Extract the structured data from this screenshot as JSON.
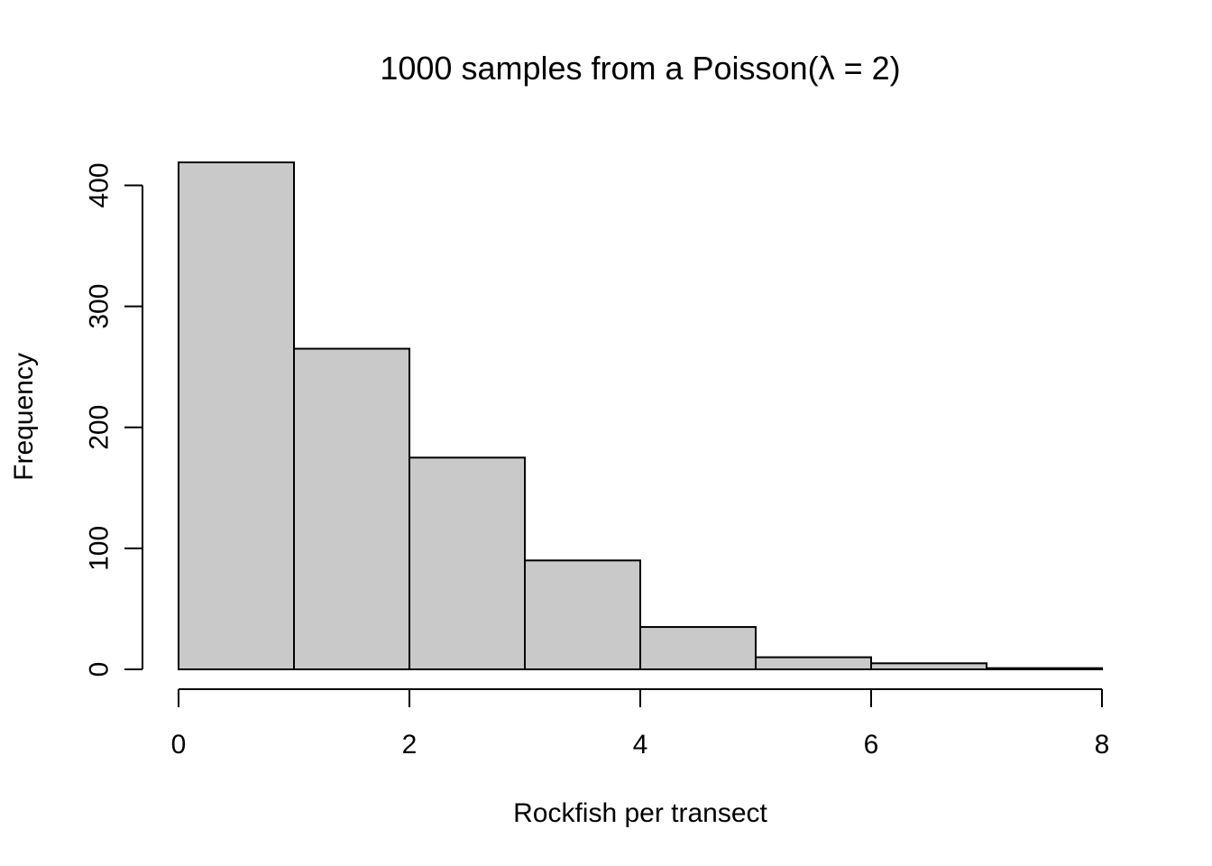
{
  "chart_data": {
    "type": "bar",
    "title": "1000 samples from a Poisson(λ = 2)",
    "xlabel": "Rockfish per transect",
    "ylabel": "Frequency",
    "bins": [
      {
        "start": 0,
        "end": 1,
        "count": 419
      },
      {
        "start": 1,
        "end": 2,
        "count": 265
      },
      {
        "start": 2,
        "end": 3,
        "count": 175
      },
      {
        "start": 3,
        "end": 4,
        "count": 90
      },
      {
        "start": 4,
        "end": 5,
        "count": 35
      },
      {
        "start": 5,
        "end": 6,
        "count": 10
      },
      {
        "start": 6,
        "end": 7,
        "count": 5
      },
      {
        "start": 7,
        "end": 8,
        "count": 1
      }
    ],
    "x_ticks": [
      0,
      2,
      4,
      6,
      8
    ],
    "y_ticks": [
      0,
      100,
      200,
      300,
      400
    ],
    "xlim": [
      0,
      8
    ],
    "ylim": [
      0,
      419
    ],
    "grid": false,
    "bar_color": "#c9c9c9",
    "outline_color": "#000000"
  }
}
